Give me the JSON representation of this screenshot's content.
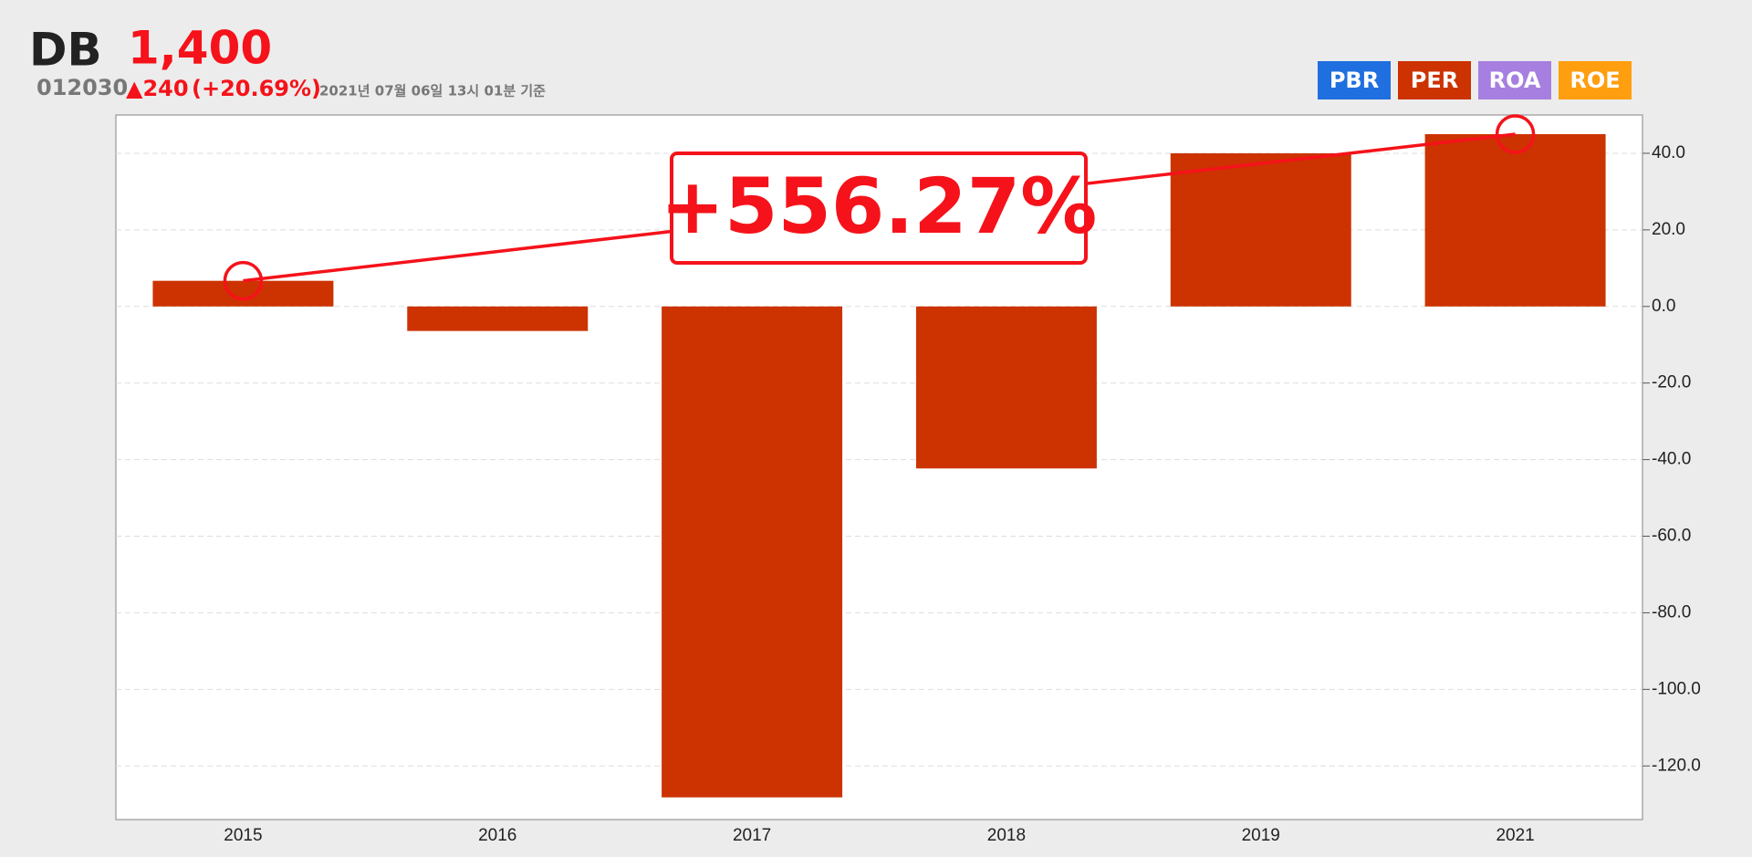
{
  "header": {
    "name": "DB",
    "price": "1,400",
    "code": "012030",
    "change": "▲240",
    "change_pct": "(+20.69%)",
    "timestamp": "2021년 07월 06일 13시 01분 기준",
    "buttons": [
      {
        "label": "PBR",
        "color": "#1f6fe0"
      },
      {
        "label": "PER",
        "color": "#cc3300"
      },
      {
        "label": "ROA",
        "color": "#a67fe0"
      },
      {
        "label": "ROE",
        "color": "#ff9e0e"
      }
    ]
  },
  "chart_data": {
    "type": "bar",
    "categories": [
      "2015",
      "2016",
      "2017",
      "2018",
      "2019",
      "2021"
    ],
    "values": [
      6.7,
      -6.4,
      -128.2,
      -42.3,
      40.0,
      45.0
    ],
    "color": "#cc3300",
    "ylim": [
      -134,
      50
    ],
    "yticks": [
      {
        "value": -120,
        "label": "-120.0"
      },
      {
        "value": -100,
        "label": "-100.0"
      },
      {
        "value": -80,
        "label": "-80.0"
      },
      {
        "value": -60,
        "label": "-60.0"
      },
      {
        "value": -40,
        "label": "-40.0"
      },
      {
        "value": -20,
        "label": "-20.0"
      },
      {
        "value": 0,
        "label": "0.0"
      },
      {
        "value": 20,
        "label": "20.0"
      },
      {
        "value": 40,
        "label": "40.0"
      }
    ],
    "grid": true,
    "annotation": "+556.27%",
    "annotation_color": "#f5121a"
  }
}
